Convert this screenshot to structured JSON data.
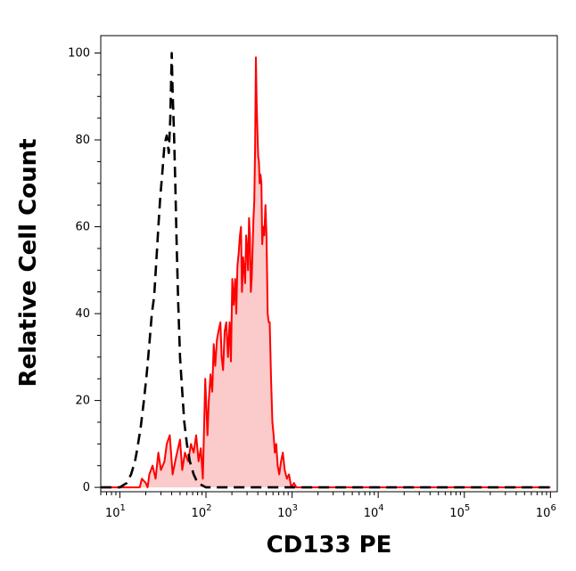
{
  "chart_data": {
    "type": "area",
    "title": "",
    "xlabel": "CD133 PE",
    "ylabel": "Relative Cell Count",
    "x_scale": "log",
    "xlim": [
      6,
      1200000
    ],
    "ylim": [
      -1,
      104
    ],
    "x_ticks": [
      {
        "value": 10,
        "base": "10",
        "exp": "1"
      },
      {
        "value": 100,
        "base": "10",
        "exp": "2"
      },
      {
        "value": 1000,
        "base": "10",
        "exp": "3"
      },
      {
        "value": 10000,
        "base": "10",
        "exp": "4"
      },
      {
        "value": 100000,
        "base": "10",
        "exp": "5"
      },
      {
        "value": 1000000,
        "base": "10",
        "exp": "6"
      }
    ],
    "y_ticks": [
      0,
      20,
      40,
      60,
      80,
      100
    ],
    "grid": false,
    "legend": "none",
    "series": [
      {
        "style": "dashed",
        "color": "#000000",
        "fill": "none",
        "x": [
          6,
          8,
          10,
          12,
          13.5,
          15,
          16,
          17.5,
          19,
          20.5,
          22,
          23.5,
          25,
          26.5,
          28,
          29.5,
          31,
          33,
          35,
          37,
          38.5,
          40,
          41,
          42.5,
          44,
          45.5,
          47.5,
          50,
          53,
          56,
          60,
          65,
          72,
          80,
          100,
          1000,
          10000,
          100000,
          1000000
        ],
        "y": [
          0,
          0,
          0,
          1,
          3,
          6,
          9,
          14,
          20,
          26,
          33,
          40,
          44,
          52,
          60,
          67,
          72,
          79,
          81,
          77,
          85,
          100,
          91,
          82,
          70,
          57,
          43,
          30,
          22,
          15,
          10,
          6,
          3,
          1,
          0,
          0,
          0,
          0,
          0
        ]
      },
      {
        "style": "solid",
        "color": "#ff0000",
        "fill": "#fbcaca",
        "x": [
          6,
          17,
          18,
          20,
          21,
          22,
          24,
          26,
          28,
          30,
          33,
          35,
          38,
          41,
          45,
          50,
          53,
          57,
          62,
          67,
          72,
          77,
          82,
          87,
          92,
          98,
          104,
          108,
          113,
          118,
          123,
          128,
          134,
          140,
          147,
          152,
          158,
          165,
          172,
          180,
          188,
          195,
          202,
          210,
          218,
          225,
          232,
          240,
          248,
          255,
          262,
          270,
          278,
          285,
          293,
          300,
          308,
          316,
          324,
          332,
          340,
          348,
          356,
          364,
          372,
          380,
          388,
          396,
          404,
          412,
          420,
          430,
          440,
          450,
          462,
          475,
          490,
          505,
          520,
          535,
          550,
          570,
          590,
          610,
          630,
          655,
          680,
          710,
          745,
          780,
          820,
          870,
          920,
          980,
          1050,
          1120,
          1200,
          1300,
          1500,
          2000,
          10000,
          100000,
          1000000
        ],
        "y": [
          0,
          0,
          2,
          1,
          0,
          3,
          5,
          2,
          8,
          4,
          6,
          10,
          12,
          3,
          7,
          11,
          4,
          8,
          6,
          10,
          8,
          12,
          6,
          9,
          2,
          25,
          12,
          20,
          26,
          22,
          33,
          28,
          34,
          36,
          38,
          30,
          27,
          36,
          38,
          30,
          38,
          29,
          48,
          42,
          48,
          40,
          51,
          54,
          58,
          60,
          45,
          53,
          50,
          47,
          58,
          55,
          50,
          62,
          58,
          45,
          48,
          55,
          62,
          66,
          78,
          99,
          88,
          82,
          76,
          75,
          70,
          72,
          70,
          56,
          60,
          58,
          65,
          58,
          40,
          38,
          38,
          25,
          15,
          12,
          8,
          10,
          5,
          3,
          6,
          8,
          4,
          2,
          3,
          0,
          1,
          0,
          0,
          0,
          0,
          0,
          0,
          0,
          0
        ]
      }
    ]
  }
}
